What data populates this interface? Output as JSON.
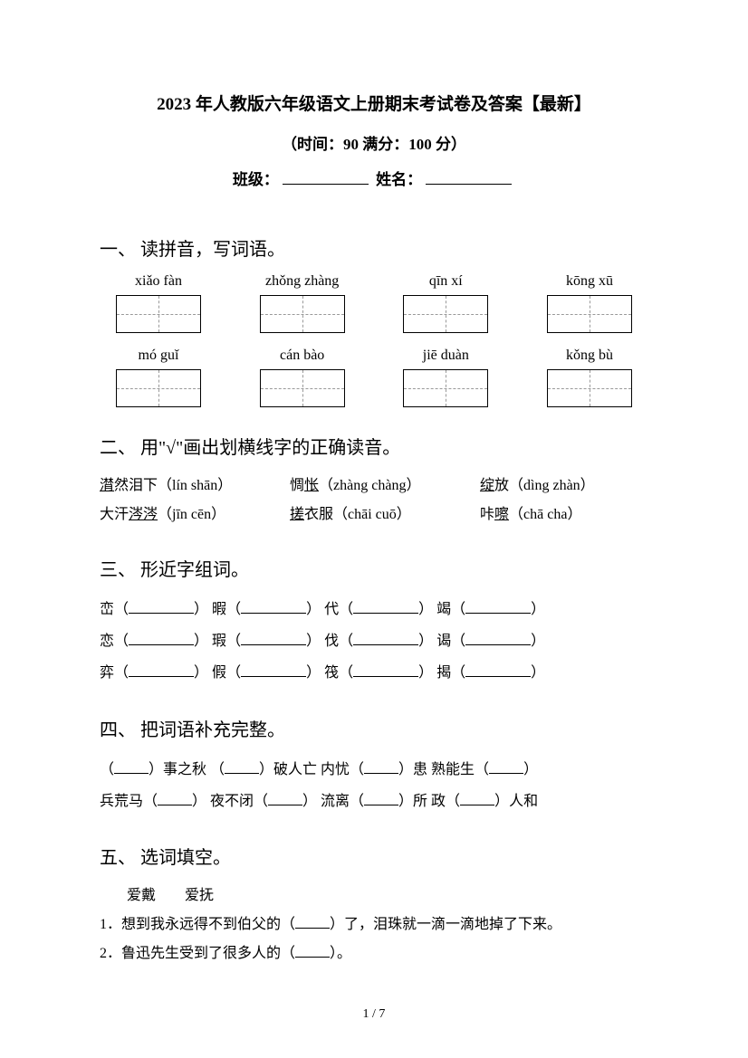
{
  "header": {
    "title": "2023 年人教版六年级语文上册期末考试卷及答案【最新】",
    "subtitle": "（时间：90   满分：100 分）",
    "class_label": "班级：",
    "name_label": "姓名："
  },
  "section1": {
    "title": "一、 读拼音，写词语。",
    "row1": [
      "xiǎo fàn",
      "zhǒng zhàng",
      "qīn xí",
      "kōng xū"
    ],
    "row2": [
      "mó guǐ",
      "cán bào",
      "jiē duàn",
      "kǒng bù"
    ]
  },
  "section2": {
    "title": "二、 用\"√\"画出划横线字的正确读音。",
    "line1": {
      "item1_a": "潸",
      "item1_b": "然泪下（lín shān）",
      "item2_a": "惆",
      "item2_b": "怅",
      "item2_c": "（zhàng chàng）",
      "item3_a": "绽",
      "item3_b": "放（dìng zhàn）"
    },
    "line2": {
      "item1_a": "大汗",
      "item1_b": "涔涔",
      "item1_c": "（jīn cēn）",
      "item2_a": "搓",
      "item2_b": "衣服（chāi cuō）",
      "item3_a": "咔",
      "item3_b": "嚓",
      "item3_c": "（chā cha）"
    }
  },
  "section3": {
    "title": "三、 形近字组词。",
    "chars": {
      "r1c1": "峦",
      "r1c2": "暇",
      "r1c3": "代",
      "r1c4": "竭",
      "r2c1": "恋",
      "r2c2": "瑕",
      "r2c3": "伐",
      "r2c4": "谒",
      "r3c1": "弈",
      "r3c2": "假",
      "r3c3": "筏",
      "r3c4": "揭"
    }
  },
  "section4": {
    "title": "四、 把词语补充完整。",
    "line1": {
      "p1a": "（",
      "p1b": "）事之秋  （",
      "p1c": "）破人亡   内忧（",
      "p1d": "）患   熟能生（",
      "p1e": "）"
    },
    "line2": {
      "p2a": "兵荒马（",
      "p2b": "）  夜不闭（",
      "p2c": "）   流离（",
      "p2d": "）所   政（",
      "p2e": "）人和"
    }
  },
  "section5": {
    "title": "五、 选词填空。",
    "words_a": "爱戴",
    "words_b": "爱抚",
    "q1_a": "1．想到我永远得不到伯父的（",
    "q1_b": "）了，泪珠就一滴一滴地掉了下来。",
    "q2_a": "2．鲁迅先生受到了很多人的（",
    "q2_b": "）。"
  },
  "pageNum": "1  /  7"
}
